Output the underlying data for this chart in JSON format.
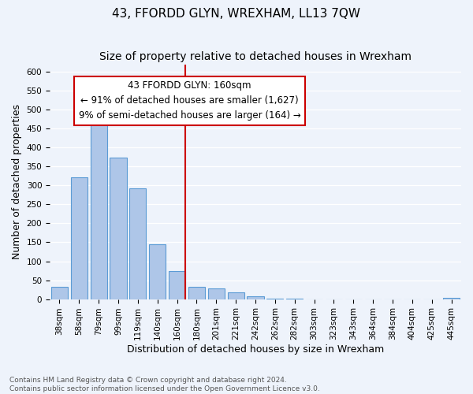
{
  "title": "43, FFORDD GLYN, WREXHAM, LL13 7QW",
  "subtitle": "Size of property relative to detached houses in Wrexham",
  "xlabel": "Distribution of detached houses by size in Wrexham",
  "ylabel": "Number of detached properties",
  "footnote1": "Contains HM Land Registry data © Crown copyright and database right 2024.",
  "footnote2": "Contains public sector information licensed under the Open Government Licence v3.0.",
  "bar_labels": [
    "38sqm",
    "58sqm",
    "79sqm",
    "99sqm",
    "119sqm",
    "140sqm",
    "160sqm",
    "180sqm",
    "201sqm",
    "221sqm",
    "242sqm",
    "262sqm",
    "282sqm",
    "303sqm",
    "323sqm",
    "343sqm",
    "364sqm",
    "384sqm",
    "404sqm",
    "425sqm",
    "445sqm"
  ],
  "bar_values": [
    32,
    322,
    470,
    373,
    293,
    145,
    75,
    32,
    29,
    18,
    8,
    1,
    1,
    0,
    0,
    0,
    0,
    0,
    0,
    0,
    3
  ],
  "bar_color": "#aec6e8",
  "bar_edge_color": "#5b9bd5",
  "background_color": "#eef3fb",
  "grid_color": "#ffffff",
  "ylim": [
    0,
    620
  ],
  "yticks": [
    0,
    50,
    100,
    150,
    200,
    250,
    300,
    350,
    400,
    450,
    500,
    550,
    600
  ],
  "property_bar_index": 6,
  "property_line_color": "#cc0000",
  "annotation_title": "43 FFORDD GLYN: 160sqm",
  "annotation_line1": "← 91% of detached houses are smaller (1,627)",
  "annotation_line2": "9% of semi-detached houses are larger (164) →",
  "annotation_box_facecolor": "#ffffff",
  "annotation_box_edgecolor": "#cc0000",
  "title_fontsize": 11,
  "subtitle_fontsize": 10,
  "axis_label_fontsize": 9,
  "tick_fontsize": 7.5,
  "annotation_fontsize": 8.5,
  "footnote_fontsize": 6.5,
  "footnote_color": "#555555"
}
